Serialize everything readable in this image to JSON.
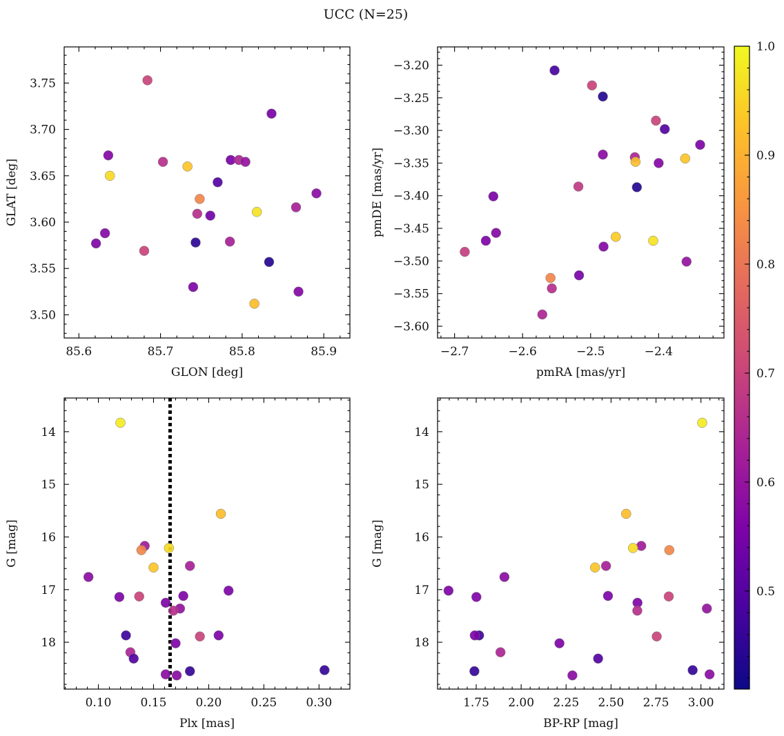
{
  "figure": {
    "title": "UCC (N=25)"
  },
  "colorbar": {
    "range": [
      0.41,
      1.0
    ],
    "ticks": [
      0.5,
      0.6,
      0.7,
      0.8,
      0.9,
      1.0
    ],
    "tick_labels": [
      "0.5",
      "0.6",
      "0.7",
      "0.8",
      "0.9",
      "1.0"
    ],
    "colormap": "plasma"
  },
  "chart_data": [
    {
      "type": "scatter",
      "id": "glon-glat",
      "xlabel": "GLON [deg]",
      "ylabel": "GLAT [deg]",
      "xlim": [
        85.582,
        85.932
      ],
      "ylim": [
        3.475,
        3.789
      ],
      "xticks": [
        85.6,
        85.7,
        85.8,
        85.9
      ],
      "xtick_labels": [
        "85.6",
        "85.7",
        "85.8",
        "85.9"
      ],
      "yticks": [
        3.5,
        3.55,
        3.6,
        3.65,
        3.7,
        3.75
      ],
      "ytick_labels": [
        "3.50",
        "3.55",
        "3.60",
        "3.65",
        "3.70",
        "3.75"
      ],
      "invert_y": false,
      "points": [
        {
          "x": 85.684,
          "y": 3.753,
          "c": 0.7
        },
        {
          "x": 85.836,
          "y": 3.717,
          "c": 0.55
        },
        {
          "x": 85.636,
          "y": 3.672,
          "c": 0.57
        },
        {
          "x": 85.703,
          "y": 3.665,
          "c": 0.66
        },
        {
          "x": 85.733,
          "y": 3.66,
          "c": 0.93
        },
        {
          "x": 85.786,
          "y": 3.667,
          "c": 0.55
        },
        {
          "x": 85.796,
          "y": 3.667,
          "c": 0.64
        },
        {
          "x": 85.804,
          "y": 3.665,
          "c": 0.6
        },
        {
          "x": 85.638,
          "y": 3.65,
          "c": 0.96
        },
        {
          "x": 85.77,
          "y": 3.643,
          "c": 0.5
        },
        {
          "x": 85.748,
          "y": 3.625,
          "c": 0.83
        },
        {
          "x": 85.891,
          "y": 3.631,
          "c": 0.58
        },
        {
          "x": 85.866,
          "y": 3.616,
          "c": 0.63
        },
        {
          "x": 85.818,
          "y": 3.611,
          "c": 0.97
        },
        {
          "x": 85.745,
          "y": 3.609,
          "c": 0.66
        },
        {
          "x": 85.761,
          "y": 3.607,
          "c": 0.54
        },
        {
          "x": 85.632,
          "y": 3.588,
          "c": 0.57
        },
        {
          "x": 85.621,
          "y": 3.577,
          "c": 0.56
        },
        {
          "x": 85.743,
          "y": 3.578,
          "c": 0.45
        },
        {
          "x": 85.785,
          "y": 3.579,
          "c": 0.63
        },
        {
          "x": 85.68,
          "y": 3.569,
          "c": 0.7
        },
        {
          "x": 85.833,
          "y": 3.557,
          "c": 0.44
        },
        {
          "x": 85.74,
          "y": 3.53,
          "c": 0.56
        },
        {
          "x": 85.869,
          "y": 3.525,
          "c": 0.57
        },
        {
          "x": 85.815,
          "y": 3.512,
          "c": 0.92
        }
      ]
    },
    {
      "type": "scatter",
      "id": "pmra-pmde",
      "xlabel": "pmRA [mas/yr]",
      "ylabel": "pmDE [mas/yr]",
      "xlim": [
        -2.725,
        -2.304
      ],
      "ylim": [
        -3.618,
        -3.172
      ],
      "xticks": [
        -2.7,
        -2.6,
        -2.5,
        -2.4
      ],
      "xtick_labels": [
        "−2.7",
        "−2.6",
        "−2.5",
        "−2.4"
      ],
      "yticks": [
        -3.6,
        -3.55,
        -3.5,
        -3.45,
        -3.4,
        -3.35,
        -3.3,
        -3.25,
        -3.2
      ],
      "ytick_labels": [
        "−3.60",
        "−3.55",
        "−3.50",
        "−3.45",
        "−3.40",
        "−3.35",
        "−3.30",
        "−3.25",
        "−3.20"
      ],
      "invert_y": false,
      "points": [
        {
          "x": -2.553,
          "y": -3.208,
          "c": 0.48
        },
        {
          "x": -2.498,
          "y": -3.231,
          "c": 0.7
        },
        {
          "x": -2.482,
          "y": -3.248,
          "c": 0.44
        },
        {
          "x": -2.404,
          "y": -3.285,
          "c": 0.7
        },
        {
          "x": -2.391,
          "y": -3.298,
          "c": 0.5
        },
        {
          "x": -2.339,
          "y": -3.322,
          "c": 0.56
        },
        {
          "x": -2.482,
          "y": -3.337,
          "c": 0.58
        },
        {
          "x": -2.435,
          "y": -3.341,
          "c": 0.64
        },
        {
          "x": -2.434,
          "y": -3.348,
          "c": 0.92
        },
        {
          "x": -2.361,
          "y": -3.343,
          "c": 0.93
        },
        {
          "x": -2.4,
          "y": -3.35,
          "c": 0.57
        },
        {
          "x": -2.518,
          "y": -3.386,
          "c": 0.68
        },
        {
          "x": -2.432,
          "y": -3.387,
          "c": 0.44
        },
        {
          "x": -2.643,
          "y": -3.401,
          "c": 0.55
        },
        {
          "x": -2.639,
          "y": -3.457,
          "c": 0.57
        },
        {
          "x": -2.654,
          "y": -3.469,
          "c": 0.56
        },
        {
          "x": -2.463,
          "y": -3.463,
          "c": 0.94
        },
        {
          "x": -2.408,
          "y": -3.469,
          "c": 0.97
        },
        {
          "x": -2.481,
          "y": -3.478,
          "c": 0.57
        },
        {
          "x": -2.685,
          "y": -3.486,
          "c": 0.69
        },
        {
          "x": -2.359,
          "y": -3.501,
          "c": 0.6
        },
        {
          "x": -2.517,
          "y": -3.522,
          "c": 0.55
        },
        {
          "x": -2.559,
          "y": -3.526,
          "c": 0.83
        },
        {
          "x": -2.557,
          "y": -3.542,
          "c": 0.66
        },
        {
          "x": -2.571,
          "y": -3.582,
          "c": 0.64
        }
      ]
    },
    {
      "type": "scatter",
      "id": "plx-g",
      "xlabel": "Plx [mas]",
      "ylabel": "G [mag]",
      "xlim": [
        0.069,
        0.328
      ],
      "ylim": [
        18.89,
        13.36
      ],
      "xticks": [
        0.1,
        0.15,
        0.2,
        0.25,
        0.3
      ],
      "xtick_labels": [
        "0.10",
        "0.15",
        "0.20",
        "0.25",
        "0.30"
      ],
      "yticks": [
        14,
        15,
        16,
        17,
        18
      ],
      "ytick_labels": [
        "14",
        "15",
        "16",
        "17",
        "18"
      ],
      "invert_y": true,
      "vline": {
        "x": 0.165,
        "style": "dotted",
        "color": "#000000"
      },
      "points": [
        {
          "x": 0.12,
          "y": 13.83,
          "c": 0.98
        },
        {
          "x": 0.211,
          "y": 15.56,
          "c": 0.92
        },
        {
          "x": 0.142,
          "y": 16.17,
          "c": 0.62
        },
        {
          "x": 0.139,
          "y": 16.25,
          "c": 0.83
        },
        {
          "x": 0.164,
          "y": 16.21,
          "c": 0.96
        },
        {
          "x": 0.15,
          "y": 16.58,
          "c": 0.93
        },
        {
          "x": 0.183,
          "y": 16.55,
          "c": 0.63
        },
        {
          "x": 0.091,
          "y": 16.76,
          "c": 0.58
        },
        {
          "x": 0.218,
          "y": 17.02,
          "c": 0.56
        },
        {
          "x": 0.119,
          "y": 17.14,
          "c": 0.56
        },
        {
          "x": 0.137,
          "y": 17.13,
          "c": 0.7
        },
        {
          "x": 0.177,
          "y": 17.12,
          "c": 0.56
        },
        {
          "x": 0.161,
          "y": 17.25,
          "c": 0.56
        },
        {
          "x": 0.174,
          "y": 17.36,
          "c": 0.6
        },
        {
          "x": 0.168,
          "y": 17.4,
          "c": 0.66
        },
        {
          "x": 0.125,
          "y": 17.87,
          "c": 0.47
        },
        {
          "x": 0.192,
          "y": 17.89,
          "c": 0.7
        },
        {
          "x": 0.209,
          "y": 17.87,
          "c": 0.56
        },
        {
          "x": 0.17,
          "y": 18.02,
          "c": 0.56
        },
        {
          "x": 0.129,
          "y": 18.19,
          "c": 0.64
        },
        {
          "x": 0.132,
          "y": 18.31,
          "c": 0.5
        },
        {
          "x": 0.305,
          "y": 18.53,
          "c": 0.46
        },
        {
          "x": 0.183,
          "y": 18.55,
          "c": 0.46
        },
        {
          "x": 0.161,
          "y": 18.61,
          "c": 0.58
        },
        {
          "x": 0.171,
          "y": 18.63,
          "c": 0.58
        }
      ]
    },
    {
      "type": "scatter",
      "id": "bprp-g",
      "xlabel": "BP-RP [mag]",
      "ylabel": "G [mag]",
      "xlim": [
        1.535,
        3.128
      ],
      "ylim": [
        18.89,
        13.36
      ],
      "xticks": [
        1.75,
        2.0,
        2.25,
        2.5,
        2.75,
        3.0
      ],
      "xtick_labels": [
        "1.75",
        "2.00",
        "2.25",
        "2.50",
        "2.75",
        "3.00"
      ],
      "yticks": [
        14,
        15,
        16,
        17,
        18
      ],
      "ytick_labels": [
        "14",
        "15",
        "16",
        "17",
        "18"
      ],
      "invert_y": true,
      "points": [
        {
          "x": 3.007,
          "y": 13.83,
          "c": 0.98
        },
        {
          "x": 2.584,
          "y": 15.56,
          "c": 0.92
        },
        {
          "x": 2.668,
          "y": 16.17,
          "c": 0.62
        },
        {
          "x": 2.824,
          "y": 16.25,
          "c": 0.83
        },
        {
          "x": 2.622,
          "y": 16.21,
          "c": 0.96
        },
        {
          "x": 2.411,
          "y": 16.58,
          "c": 0.93
        },
        {
          "x": 2.472,
          "y": 16.55,
          "c": 0.63
        },
        {
          "x": 1.907,
          "y": 16.76,
          "c": 0.58
        },
        {
          "x": 1.596,
          "y": 17.02,
          "c": 0.56
        },
        {
          "x": 1.751,
          "y": 17.14,
          "c": 0.56
        },
        {
          "x": 2.821,
          "y": 17.13,
          "c": 0.7
        },
        {
          "x": 2.483,
          "y": 17.12,
          "c": 0.56
        },
        {
          "x": 2.647,
          "y": 17.25,
          "c": 0.56
        },
        {
          "x": 3.033,
          "y": 17.36,
          "c": 0.6
        },
        {
          "x": 2.646,
          "y": 17.4,
          "c": 0.66
        },
        {
          "x": 1.766,
          "y": 17.87,
          "c": 0.47
        },
        {
          "x": 2.754,
          "y": 17.89,
          "c": 0.7
        },
        {
          "x": 1.742,
          "y": 17.87,
          "c": 0.56
        },
        {
          "x": 2.213,
          "y": 18.02,
          "c": 0.56
        },
        {
          "x": 1.885,
          "y": 18.19,
          "c": 0.64
        },
        {
          "x": 2.428,
          "y": 18.31,
          "c": 0.5
        },
        {
          "x": 2.954,
          "y": 18.53,
          "c": 0.46
        },
        {
          "x": 1.74,
          "y": 18.55,
          "c": 0.46
        },
        {
          "x": 3.048,
          "y": 18.61,
          "c": 0.58
        },
        {
          "x": 2.285,
          "y": 18.63,
          "c": 0.58
        }
      ]
    }
  ]
}
